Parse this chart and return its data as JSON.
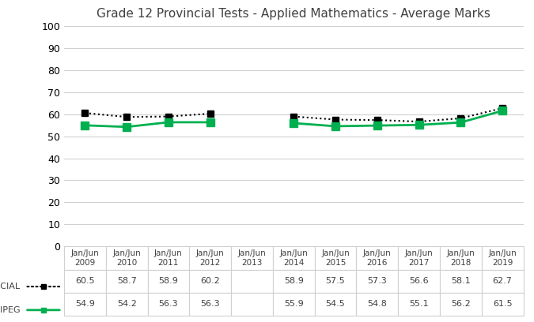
{
  "title": "Grade 12 Provincial Tests - Applied Mathematics - Average Marks",
  "x_labels": [
    "Jan/Jun\n2009",
    "Jan/Jun\n2010",
    "Jan/Jun\n2011",
    "Jan/Jun\n2012",
    "Jan/Jun\n2013",
    "Jan/Jun\n2014",
    "Jan/Jun\n2015",
    "Jan/Jun\n2016",
    "Jan/Jun\n2017",
    "Jan/Jun\n2018",
    "Jan/Jun\n2019"
  ],
  "x_positions": [
    0,
    1,
    2,
    3,
    4,
    5,
    6,
    7,
    8,
    9,
    10
  ],
  "provincial_values": [
    60.5,
    58.7,
    58.9,
    60.2,
    null,
    58.9,
    57.5,
    57.3,
    56.6,
    58.1,
    62.7
  ],
  "winnipeg_values": [
    54.9,
    54.2,
    56.3,
    56.3,
    null,
    55.9,
    54.5,
    54.8,
    55.1,
    56.2,
    61.5
  ],
  "provincial_label": "PROVINCIAL",
  "winnipeg_label": "WINNIPEG",
  "provincial_color": "#000000",
  "winnipeg_color": "#00b050",
  "ylim": [
    0,
    100
  ],
  "yticks": [
    0,
    10,
    20,
    30,
    40,
    50,
    60,
    70,
    80,
    90,
    100
  ],
  "background_color": "#ffffff",
  "grid_color": "#d0d0d0",
  "table_provincial_values": [
    "60.5",
    "58.7",
    "58.9",
    "60.2",
    "",
    "58.9",
    "57.5",
    "57.3",
    "56.6",
    "58.1",
    "62.7"
  ],
  "table_winnipeg_values": [
    "54.9",
    "54.2",
    "56.3",
    "56.3",
    "",
    "55.9",
    "54.5",
    "54.8",
    "55.1",
    "56.2",
    "61.5"
  ],
  "title_fontsize": 11,
  "tick_fontsize": 9,
  "xtick_fontsize": 7.5,
  "table_fontsize": 8
}
